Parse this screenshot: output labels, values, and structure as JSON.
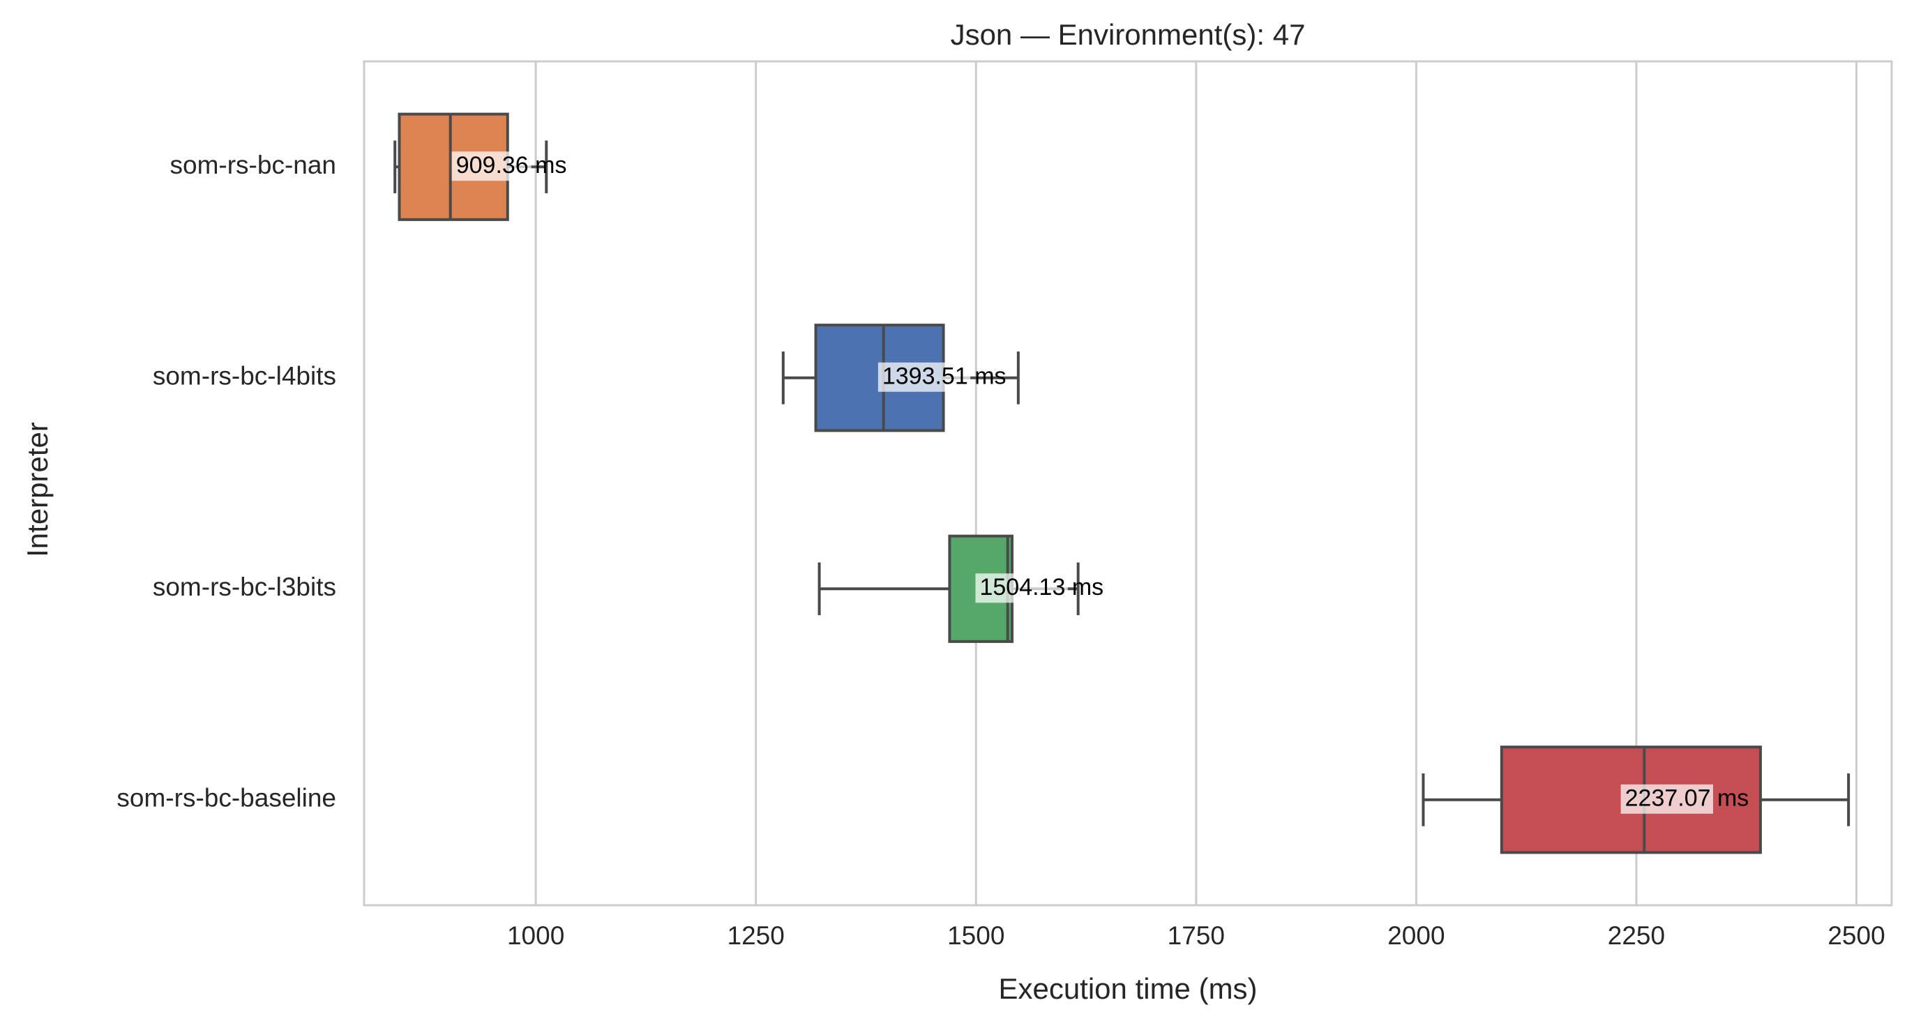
{
  "chart_data": {
    "type": "box",
    "orientation": "horizontal",
    "title": "Json — Environment(s): 47",
    "xlabel": "Execution time (ms)",
    "ylabel": "Interpreter",
    "xlim": [
      805,
      2540
    ],
    "xticks": [
      1000,
      1250,
      1500,
      1750,
      2000,
      2250,
      2500
    ],
    "grid": "vertical",
    "unit_suffix": " ms",
    "series": [
      {
        "name": "som-rs-bc-nan",
        "color": "#DD8452",
        "whisker_low": 840,
        "q1": 845,
        "median": 903,
        "q3": 968,
        "whisker_high": 1012,
        "outliers": [],
        "label": 909.36
      },
      {
        "name": "som-rs-bc-l4bits",
        "color": "#4C72B0",
        "whisker_low": 1281,
        "q1": 1318,
        "median": 1395,
        "q3": 1463,
        "whisker_high": 1548,
        "outliers": [],
        "label": 1393.51
      },
      {
        "name": "som-rs-bc-l3bits",
        "color": "#55A868",
        "whisker_low": 1322,
        "q1": 1470,
        "median": 1536,
        "q3": 1541,
        "whisker_high": 1616,
        "outliers": [],
        "label": 1504.13
      },
      {
        "name": "som-rs-bc-baseline",
        "color": "#C44E52",
        "whisker_low": 2008,
        "q1": 2097,
        "median": 2259,
        "q3": 2391,
        "whisker_high": 2491,
        "outliers": [],
        "label": 2237.07
      }
    ]
  }
}
